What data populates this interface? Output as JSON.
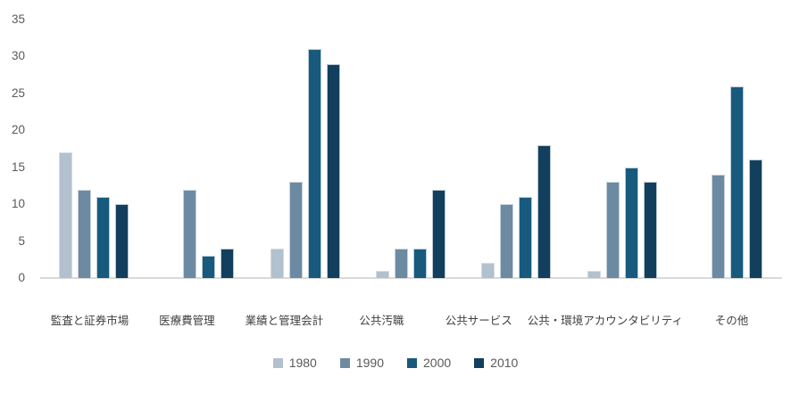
{
  "chart_data": {
    "type": "bar",
    "title": "",
    "xlabel": "",
    "ylabel": "",
    "categories": [
      "監査と証券市場",
      "医療費管理",
      "業績と管理会計",
      "公共汚職",
      "公共サービス",
      "公共・環境アカウンタビリティ",
      "その他"
    ],
    "series": [
      {
        "name": "1980",
        "color": "#b3c0cd",
        "values": [
          17,
          0,
          4,
          1,
          2,
          1,
          0
        ]
      },
      {
        "name": "1990",
        "color": "#6d8aa3",
        "values": [
          12,
          12,
          13,
          4,
          10,
          13,
          14
        ]
      },
      {
        "name": "2000",
        "color": "#175a7e",
        "values": [
          11,
          3,
          31,
          4,
          11,
          15,
          26
        ]
      },
      {
        "name": "2010",
        "color": "#123f5d",
        "values": [
          10,
          4,
          29,
          12,
          18,
          13,
          16
        ]
      }
    ],
    "ylim": [
      0,
      35
    ],
    "yticks": [
      0,
      5,
      10,
      15,
      20,
      25,
      30,
      35
    ],
    "grid": false,
    "legend_position": "bottom",
    "axis_line_color": "#d9d9d9",
    "tick_text_color": "#595959"
  }
}
